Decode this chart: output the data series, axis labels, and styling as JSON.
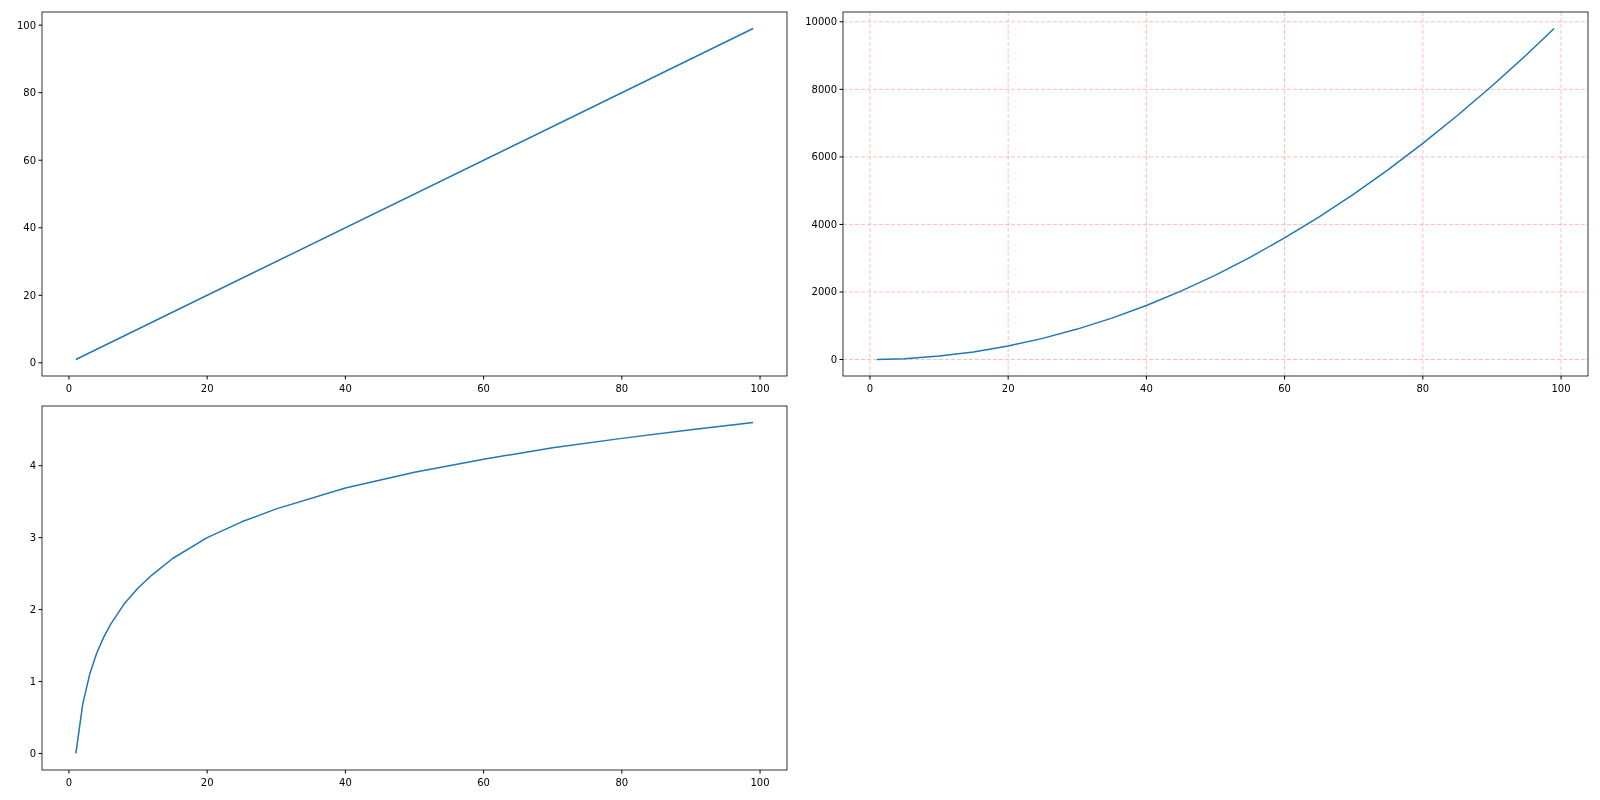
{
  "chart_data": [
    {
      "type": "line",
      "x": [
        1,
        99
      ],
      "series": [
        {
          "color": "#1f77b4",
          "values": [
            1,
            99
          ]
        }
      ],
      "xlim": [
        -3.9,
        103.9
      ],
      "ylim": [
        -3.9,
        103.9
      ],
      "xticks": [
        0,
        20,
        40,
        60,
        80,
        100
      ],
      "yticks": [
        0,
        20,
        40,
        60,
        80,
        100
      ],
      "grid": false
    },
    {
      "type": "line",
      "x": [
        1,
        5,
        10,
        15,
        20,
        25,
        30,
        35,
        40,
        45,
        50,
        55,
        60,
        65,
        70,
        75,
        80,
        85,
        90,
        95,
        99
      ],
      "series": [
        {
          "color": "#1f77b4",
          "values": [
            1,
            25,
            100,
            225,
            400,
            625,
            900,
            1225,
            1600,
            2025,
            2500,
            3025,
            3600,
            4225,
            4900,
            5625,
            6400,
            7225,
            8100,
            9025,
            9801
          ]
        }
      ],
      "xlim": [
        -3.9,
        103.9
      ],
      "ylim": [
        -489,
        10291
      ],
      "xticks": [
        0,
        20,
        40,
        60,
        80,
        100
      ],
      "yticks": [
        0,
        2000,
        4000,
        6000,
        8000,
        10000
      ],
      "grid": true
    },
    {
      "type": "line",
      "x": [
        1,
        2,
        3,
        4,
        5,
        6,
        8,
        10,
        12,
        15,
        20,
        25,
        30,
        40,
        50,
        60,
        70,
        80,
        90,
        99
      ],
      "series": [
        {
          "color": "#1f77b4",
          "values": [
            0,
            0.69,
            1.1,
            1.39,
            1.61,
            1.79,
            2.08,
            2.3,
            2.48,
            2.71,
            3,
            3.22,
            3.4,
            3.69,
            3.91,
            4.09,
            4.25,
            4.38,
            4.5,
            4.6
          ]
        }
      ],
      "xlim": [
        -3.9,
        103.9
      ],
      "ylim": [
        -0.23,
        4.83
      ],
      "xticks": [
        0,
        20,
        40,
        60,
        80,
        100
      ],
      "yticks": [
        0,
        1,
        2,
        3,
        4
      ],
      "grid": false
    }
  ]
}
